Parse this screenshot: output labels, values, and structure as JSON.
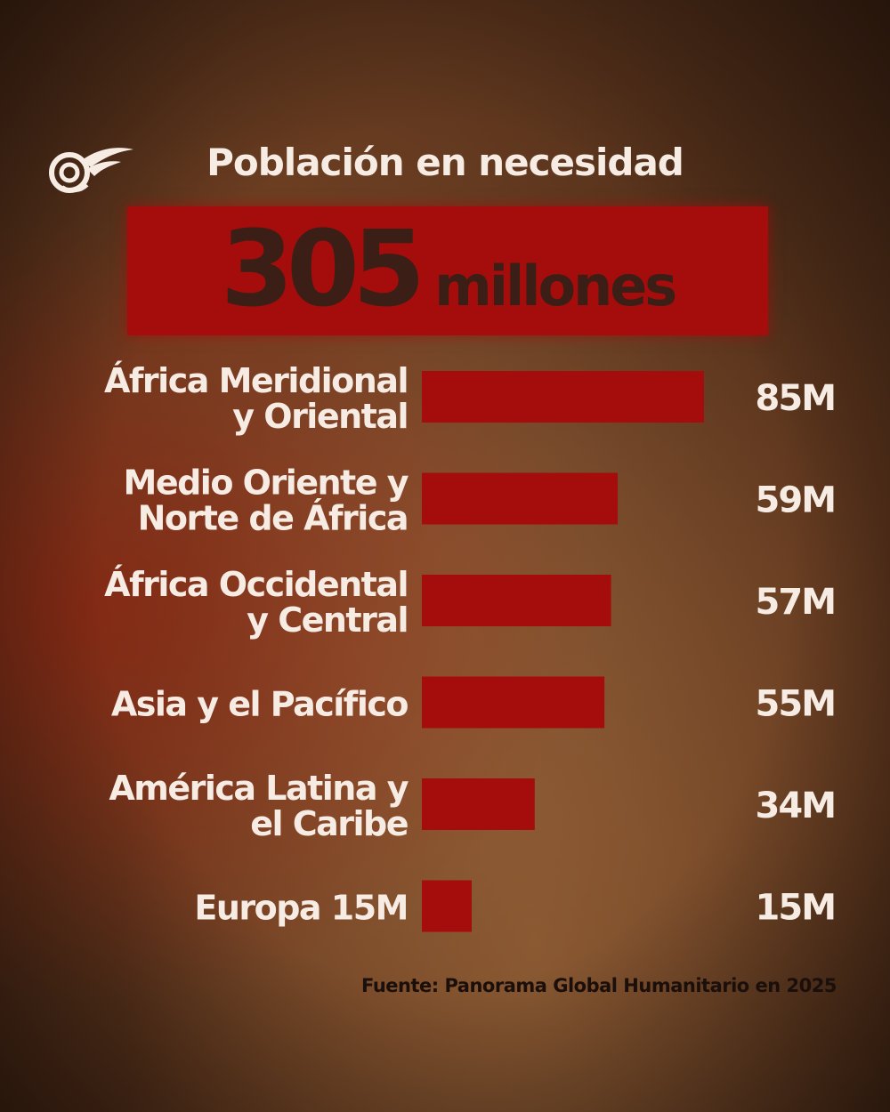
{
  "header": {
    "title": "Población en necesidad",
    "total_number": "305",
    "total_unit": "millones"
  },
  "chart_data": {
    "type": "bar",
    "orientation": "horizontal",
    "categories": [
      [
        "África Meridional",
        "y Oriental"
      ],
      [
        "Medio Oriente y",
        "Norte de África"
      ],
      [
        "África Occidental",
        "y Central"
      ],
      [
        "Asia y el Pacífico"
      ],
      [
        "América Latina y",
        "el Caribe"
      ],
      [
        "Europa 15M"
      ]
    ],
    "values": [
      85,
      59,
      57,
      55,
      34,
      15
    ],
    "value_labels": [
      "85M",
      "59M",
      "57M",
      "55M",
      "34M",
      "15M"
    ],
    "unit": "M",
    "title": "",
    "xlabel": "",
    "ylabel": "",
    "xlim": [
      0,
      85
    ],
    "grid": false,
    "legend": "none"
  },
  "source": "Fuente: Panorama Global Humanitario en 2025",
  "colors": {
    "bar": "#a40d0b",
    "text": "#f6ece4",
    "dark_text": "#3b1f16"
  },
  "logo": {
    "icon": "al-mayadeen-logo"
  }
}
